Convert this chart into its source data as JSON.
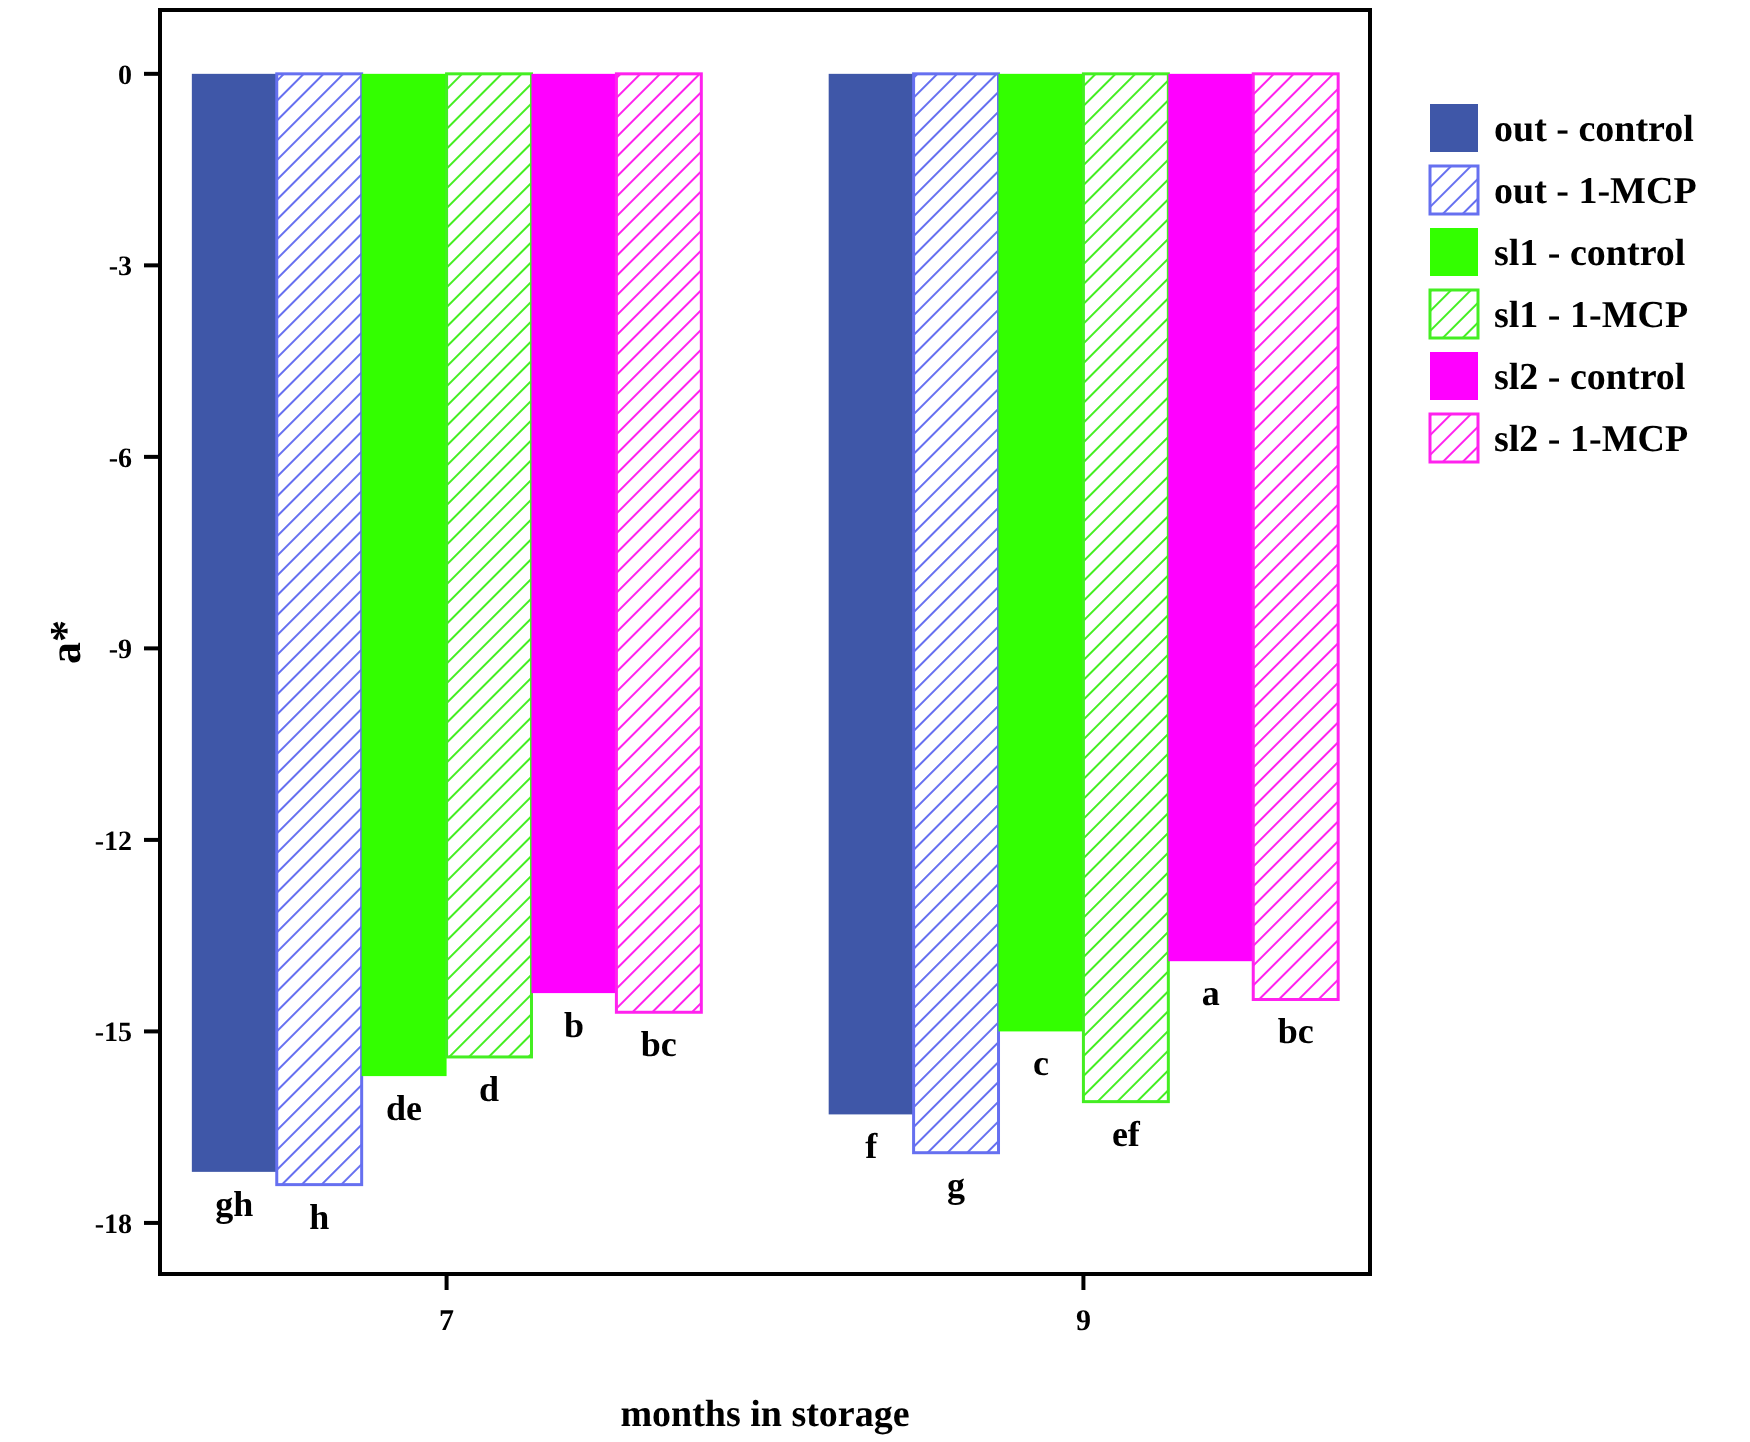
{
  "chart_data": {
    "type": "bar",
    "xlabel": "months in storage",
    "ylabel": "a*",
    "categories": [
      "7",
      "9"
    ],
    "ylim": [
      -18.8,
      1
    ],
    "yticks": [
      0,
      -3,
      -6,
      -9,
      -12,
      -15,
      -18
    ],
    "legend": "right",
    "grid": false,
    "series": [
      {
        "name": "out - control",
        "color": "#3f57a8",
        "values": [
          -17.2,
          -16.3
        ],
        "value_labels": [
          "gh",
          "f"
        ]
      },
      {
        "name": "out - 1-MCP",
        "color": "#6670f0",
        "values": [
          -17.4,
          -16.9
        ],
        "value_labels": [
          "h",
          "g"
        ]
      },
      {
        "name": "sl1 - control",
        "color": "#33ff00",
        "values": [
          -15.7,
          -15.0
        ],
        "value_labels": [
          "de",
          "c"
        ]
      },
      {
        "name": "sl1 - 1-MCP",
        "color": "#44ee22",
        "values": [
          -15.4,
          -16.1
        ],
        "value_labels": [
          "d",
          "ef"
        ]
      },
      {
        "name": "sl2 - control",
        "color": "#ff00ff",
        "values": [
          -14.4,
          -13.9
        ],
        "value_labels": [
          "b",
          "a"
        ]
      },
      {
        "name": "sl2 - 1-MCP",
        "color": "#ff22ee",
        "values": [
          -14.7,
          -14.5
        ],
        "value_labels": [
          "bc",
          "bc"
        ]
      }
    ]
  }
}
